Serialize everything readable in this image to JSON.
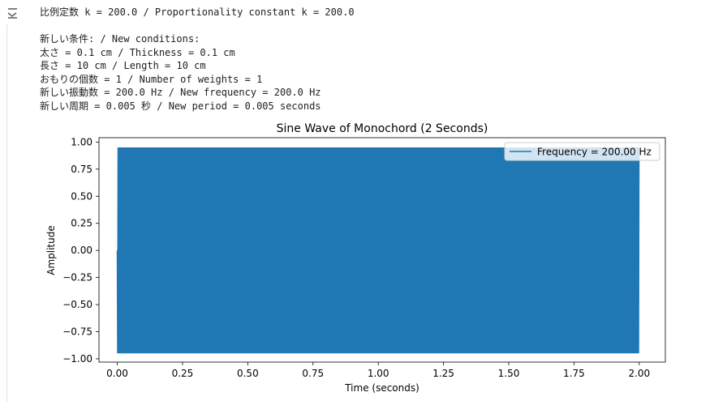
{
  "output": {
    "icon": "output-collapse-icon",
    "first_line": "比例定数 k = 200.0 / Proportionality constant k = 200.0",
    "lines": [
      "新しい条件: / New conditions:",
      "太さ = 0.1 cm / Thickness = 0.1 cm",
      "長さ = 10 cm / Length = 10 cm",
      "おもりの個数 = 1 / Number of weights = 1",
      "新しい振動数 = 200.0 Hz / New frequency = 200.0 Hz",
      "新しい周期 = 0.005 秒 / New period = 0.005 seconds"
    ]
  },
  "chart_data": {
    "type": "line",
    "title": "Sine Wave of Monochord (2 Seconds)",
    "xlabel": "Time (seconds)",
    "ylabel": "Amplitude",
    "xlim": [
      -0.07,
      2.1
    ],
    "ylim": [
      -1.03,
      1.04
    ],
    "xticks": [
      0.0,
      0.25,
      0.5,
      0.75,
      1.0,
      1.25,
      1.5,
      1.75,
      2.0
    ],
    "xtick_labels": [
      "0.00",
      "0.25",
      "0.50",
      "0.75",
      "1.00",
      "1.25",
      "1.50",
      "1.75",
      "2.00"
    ],
    "yticks": [
      1.0,
      0.75,
      0.5,
      0.25,
      0.0,
      -0.25,
      -0.5,
      -0.75,
      -1.0
    ],
    "ytick_labels": [
      "1.00",
      "0.75",
      "0.50",
      "0.25",
      "0.00",
      "−0.25",
      "−0.50",
      "−0.75",
      "−1.00"
    ],
    "grid": false,
    "legend_placement": "top-right",
    "series": [
      {
        "name": "Frequency = 200.00 Hz",
        "frequency_hz": 200.0,
        "amplitude": 0.95,
        "x_start": 0.0,
        "x_end": 2.0,
        "color": "#1f77b4"
      }
    ]
  }
}
